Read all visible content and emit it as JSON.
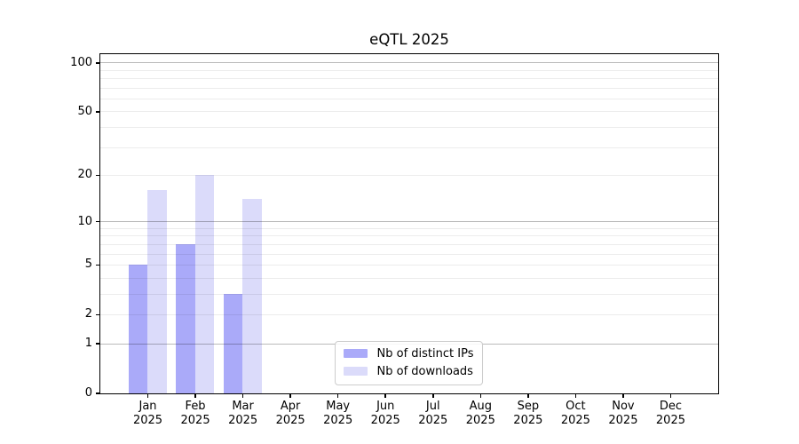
{
  "title": "eQTL 2025",
  "chart_data": {
    "type": "bar",
    "title": "eQTL 2025",
    "categories": [
      "Jan\n2025",
      "Feb\n2025",
      "Mar\n2025",
      "Apr\n2025",
      "May\n2025",
      "Jun\n2025",
      "Jul\n2025",
      "Aug\n2025",
      "Sep\n2025",
      "Oct\n2025",
      "Nov\n2025",
      "Dec\n2025"
    ],
    "series": [
      {
        "name": "Nb of distinct IPs",
        "color": "#aaaaf9",
        "values": [
          5,
          7,
          3,
          null,
          null,
          null,
          null,
          null,
          null,
          null,
          null,
          null
        ]
      },
      {
        "name": "Nb of downloads",
        "color": "#dbdbfa",
        "values": [
          16,
          20,
          14,
          null,
          null,
          null,
          null,
          null,
          null,
          null,
          null,
          null
        ]
      }
    ],
    "xlabel": "",
    "ylabel": "",
    "yscale": "log1p",
    "y_ticks": [
      0,
      1,
      2,
      5,
      10,
      20,
      50,
      100
    ],
    "y_major_gridlines": [
      1,
      10,
      100
    ],
    "ylim": [
      0,
      113
    ],
    "grid": "on",
    "grid_above_bars": true,
    "legend_position": "lower center",
    "colors": {
      "axis": "#000000",
      "major_grid": "#bdbdbd",
      "minor_grid": "#ededed",
      "background": "#ffffff"
    }
  }
}
